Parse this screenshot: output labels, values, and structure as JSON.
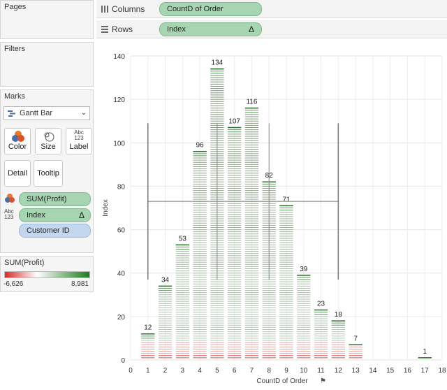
{
  "pages": {
    "title": "Pages"
  },
  "filters": {
    "title": "Filters"
  },
  "marks": {
    "title": "Marks",
    "mark_type": "Gantt Bar",
    "buttons": {
      "color": "Color",
      "size": "Size",
      "label": "Label",
      "label_icon": "Abc\n123",
      "detail": "Detail",
      "tooltip": "Tooltip"
    },
    "fields": [
      {
        "name": "SUM(Profit)",
        "type_icon": "color-icon"
      },
      {
        "name": "Index",
        "type_icon": "Abc\n123",
        "suffix": "Δ"
      },
      {
        "name": "Customer ID",
        "type_icon": ""
      }
    ]
  },
  "legend": {
    "title": "SUM(Profit)",
    "min": "-6,626",
    "max": "8,981",
    "colors": [
      "#d62b2b",
      "#ffffff",
      "#1f7a1f"
    ]
  },
  "shelves": {
    "columns": {
      "label": "Columns",
      "pill": "CountD of Order"
    },
    "rows": {
      "label": "Rows",
      "pill": "Index",
      "pill_suffix": "Δ"
    }
  },
  "chart_data": {
    "type": "bar",
    "xlabel": "CountD of Order",
    "ylabel": "Index",
    "x_ticks": [
      0,
      1,
      2,
      3,
      4,
      5,
      6,
      7,
      8,
      9,
      10,
      11,
      12,
      13,
      14,
      15,
      16,
      17,
      18
    ],
    "y_ticks": [
      0,
      20,
      40,
      60,
      80,
      100,
      120,
      140
    ],
    "xlim": [
      0,
      18
    ],
    "ylim": [
      0,
      140
    ],
    "categories": [
      1,
      2,
      3,
      4,
      5,
      6,
      7,
      8,
      9,
      10,
      11,
      12,
      13,
      17
    ],
    "values": [
      12,
      34,
      53,
      96,
      134,
      107,
      116,
      82,
      71,
      39,
      23,
      18,
      7,
      1
    ],
    "reference": {
      "band_lower": 37,
      "band_upper": 109,
      "mean_line": 73,
      "x_band": [
        1,
        12
      ],
      "inner_x": [
        5,
        8
      ]
    }
  }
}
